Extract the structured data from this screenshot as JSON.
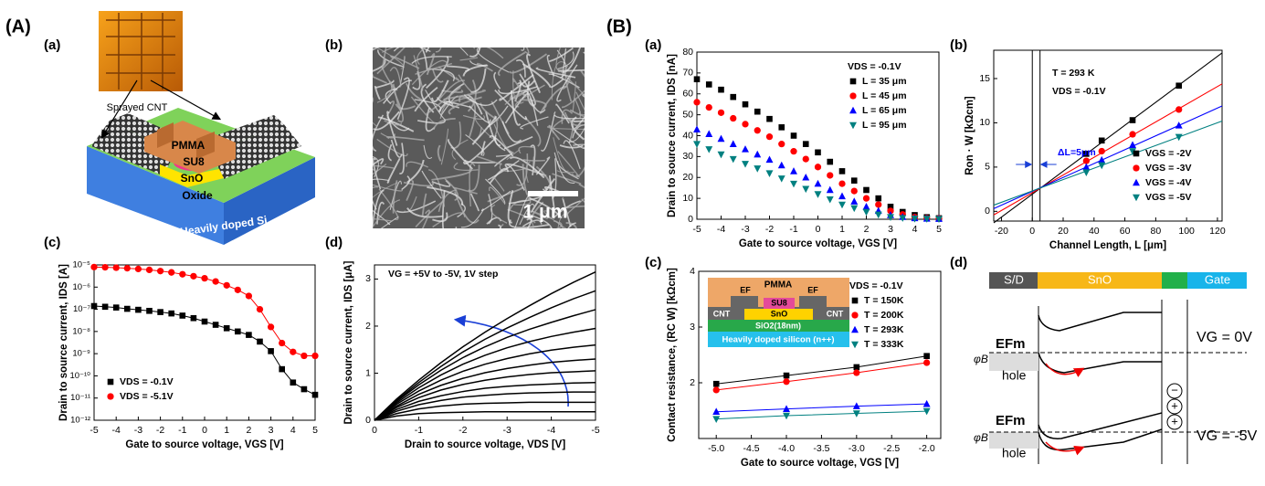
{
  "panel_labels": {
    "A": "(A)",
    "Aa": "(a)",
    "Ab": "(b)",
    "Ac": "(c)",
    "Ad": "(d)",
    "B": "(B)",
    "Ba": "(a)",
    "Bb": "(b)",
    "Bc": "(c)",
    "Bd": "(d)"
  },
  "device": {
    "cnt": "Sprayed CNT",
    "pmma": "PMMA",
    "su8": "SU8",
    "sno": "SnO",
    "oxide": "Oxide",
    "substrate": "Heavily doped Si"
  },
  "sem": {
    "scale_bar": "1 μm"
  },
  "band": {
    "regions": [
      "S/D",
      "SnO",
      "Gate"
    ],
    "efm": "EFm",
    "phi": "φB",
    "hole": "hole",
    "vg0": "VG = 0V",
    "vg5": "VG = -5V",
    "charges": [
      "−",
      "+",
      "+"
    ]
  },
  "chart_data": [
    {
      "type": "line",
      "log_y": true,
      "lines": true,
      "xlabel": "Gate to source voltage, VGS [V]",
      "ylabel": "Drain to source current, IDS [A]",
      "x": [
        -5,
        -4.5,
        -4,
        -3.5,
        -3,
        -2.5,
        -2,
        -1.5,
        -1,
        -0.5,
        0,
        0.5,
        1,
        1.5,
        2,
        2.5,
        3,
        3.5,
        4,
        4.5,
        5
      ],
      "xlim": [
        -5,
        5
      ],
      "xticks": [
        -5,
        -4,
        -3,
        -2,
        -1,
        0,
        1,
        2,
        3,
        4,
        5
      ],
      "ylim": [
        1e-12,
        1e-05
      ],
      "yticks": [
        {
          "value": 1e-12,
          "label": "10⁻¹²"
        },
        {
          "value": 1e-11,
          "label": "10⁻¹¹"
        },
        {
          "value": 1e-10,
          "label": "10⁻¹⁰"
        },
        {
          "value": 1e-09,
          "label": "10⁻⁹"
        },
        {
          "value": 1e-08,
          "label": "10⁻⁸"
        },
        {
          "value": 1e-07,
          "label": "10⁻⁷"
        },
        {
          "value": 1e-06,
          "label": "10⁻⁶"
        },
        {
          "value": 1e-05,
          "label": "10⁻⁵"
        }
      ],
      "legend": "lower left",
      "series": [
        {
          "name": "VDS = -0.1V",
          "color": "#000000",
          "marker": "square",
          "values": [
            1.4e-07,
            1.3e-07,
            1.2e-07,
            1.05e-07,
            9.5e-08,
            8.5e-08,
            7.5e-08,
            6.5e-08,
            5.2e-08,
            4e-08,
            2.8e-08,
            2e-08,
            1.4e-08,
            1e-08,
            7e-09,
            3.5e-09,
            1.3e-09,
            2e-10,
            5e-11,
            2.5e-11,
            1.4e-11
          ]
        },
        {
          "name": "VDS = -5.1V",
          "color": "#ff0000",
          "marker": "circle",
          "values": [
            8e-06,
            7.8e-06,
            7.5e-06,
            7.1e-06,
            6.6e-06,
            6e-06,
            5.3e-06,
            4.6e-06,
            3.8e-06,
            3.1e-06,
            2.5e-06,
            1.8e-06,
            1.2e-06,
            7.5e-07,
            4e-07,
            1e-07,
            1.6e-08,
            3e-09,
            1.2e-09,
            8e-10,
            8e-10
          ]
        }
      ]
    },
    {
      "type": "line",
      "lines": true,
      "xlabel": "Drain to source voltage, VDS [V]",
      "ylabel": "Drain to source current, IDS [μA]",
      "x": [
        0,
        -0.5,
        -1,
        -1.5,
        -2,
        -2.5,
        -3,
        -3.5,
        -4,
        -4.5,
        -5
      ],
      "xlim": [
        0,
        -5
      ],
      "xticks": [
        0,
        -1,
        -2,
        -3,
        -4,
        -5
      ],
      "ylim": [
        0,
        3.3
      ],
      "yticks": [
        0,
        1,
        2,
        3
      ],
      "annotations": [
        {
          "text": "VG = +5V to -5V, 1V step",
          "color": "#000000"
        }
      ],
      "series": [
        {
          "color": "#000000",
          "values": [
            0,
            0.45,
            0.85,
            1.22,
            1.56,
            1.87,
            2.16,
            2.43,
            2.69,
            2.93,
            3.15
          ]
        },
        {
          "color": "#000000",
          "values": [
            0,
            0.42,
            0.8,
            1.14,
            1.45,
            1.72,
            1.96,
            2.18,
            2.39,
            2.58,
            2.75
          ]
        },
        {
          "color": "#000000",
          "values": [
            0,
            0.4,
            0.75,
            1.06,
            1.33,
            1.56,
            1.76,
            1.93,
            2.08,
            2.22,
            2.35
          ]
        },
        {
          "color": "#000000",
          "values": [
            0,
            0.37,
            0.69,
            0.96,
            1.19,
            1.38,
            1.54,
            1.67,
            1.78,
            1.87,
            1.95
          ]
        },
        {
          "color": "#000000",
          "values": [
            0,
            0.34,
            0.62,
            0.85,
            1.04,
            1.19,
            1.31,
            1.41,
            1.49,
            1.55,
            1.6
          ]
        },
        {
          "color": "#000000",
          "values": [
            0,
            0.3,
            0.55,
            0.74,
            0.89,
            1.01,
            1.1,
            1.17,
            1.23,
            1.27,
            1.3
          ]
        },
        {
          "color": "#000000",
          "values": [
            0,
            0.27,
            0.48,
            0.64,
            0.76,
            0.85,
            0.92,
            0.97,
            1.01,
            1.03,
            1.05
          ]
        },
        {
          "color": "#000000",
          "values": [
            0,
            0.23,
            0.4,
            0.52,
            0.61,
            0.68,
            0.72,
            0.75,
            0.77,
            0.79,
            0.8
          ]
        },
        {
          "color": "#000000",
          "values": [
            0,
            0.19,
            0.33,
            0.42,
            0.49,
            0.53,
            0.56,
            0.58,
            0.59,
            0.6,
            0.6
          ]
        },
        {
          "color": "#000000",
          "values": [
            0,
            0.14,
            0.24,
            0.3,
            0.34,
            0.36,
            0.37,
            0.38,
            0.38,
            0.38,
            0.38
          ]
        },
        {
          "color": "#000000",
          "values": [
            0,
            0.09,
            0.14,
            0.16,
            0.17,
            0.18,
            0.18,
            0.18,
            0.18,
            0.18,
            0.18
          ]
        }
      ]
    },
    {
      "type": "line",
      "lines": false,
      "xlabel": "Gate to source voltage, VGS [V]",
      "ylabel": "Drain to source current, IDS [nA]",
      "x": [
        -5,
        -4.5,
        -4,
        -3.5,
        -3,
        -2.5,
        -2,
        -1.5,
        -1,
        -0.5,
        0,
        0.5,
        1,
        1.5,
        2,
        2.5,
        3,
        3.5,
        4,
        4.5,
        5
      ],
      "xlim": [
        -5,
        5
      ],
      "xticks": [
        -5,
        -4,
        -3,
        -2,
        -1,
        0,
        1,
        2,
        3,
        4,
        5
      ],
      "ylim": [
        0,
        80
      ],
      "yticks": [
        0,
        10,
        20,
        30,
        40,
        50,
        60,
        70,
        80
      ],
      "legend": "upper right",
      "legend_title": "VDS = -0.1V",
      "series": [
        {
          "name": "L = 35 μm",
          "color": "#000000",
          "marker": "square",
          "values": [
            67,
            64.5,
            62,
            58.5,
            55,
            51.5,
            48,
            44,
            40,
            36,
            32,
            27.5,
            23,
            18.5,
            14,
            10,
            6,
            3.5,
            2,
            1,
            0.5
          ]
        },
        {
          "name": "L = 45 μm",
          "color": "#ff0000",
          "marker": "circle",
          "values": [
            56,
            53.5,
            51,
            48.3,
            45.5,
            42.5,
            39.5,
            36,
            32.5,
            28.8,
            25,
            21,
            17,
            13.5,
            10,
            7,
            4,
            2.3,
            1,
            0.5,
            0.3
          ]
        },
        {
          "name": "L = 65 μm",
          "color": "#0000ff",
          "marker": "triangle-up",
          "values": [
            43,
            40.8,
            38.5,
            36,
            33.5,
            31,
            28.5,
            25.8,
            23,
            20,
            17,
            14,
            11,
            8.5,
            6,
            4,
            2,
            1.1,
            0.5,
            0.3,
            0.2
          ]
        },
        {
          "name": "L = 95 μm",
          "color": "#008080",
          "marker": "triangle-down",
          "values": [
            36,
            33.5,
            31,
            28.8,
            26.5,
            24.3,
            22,
            19.5,
            17,
            14.5,
            12,
            9.5,
            7,
            5.3,
            3.5,
            2.2,
            1,
            0.6,
            0.3,
            0.2,
            0.1
          ]
        }
      ]
    },
    {
      "type": "scatter",
      "lines": false,
      "xlabel": "Channel Length, L [μm]",
      "ylabel": "Ron · W [kΩcm]",
      "x": [
        35,
        45,
        65,
        95
      ],
      "xlim": [
        -25,
        123
      ],
      "xticks": [
        -20,
        0,
        20,
        40,
        60,
        80,
        100,
        120
      ],
      "ylim": [
        -1.1,
        18.2
      ],
      "yticks": [
        0,
        5,
        10,
        15
      ],
      "legend": "lower right",
      "fit_x": [
        -25,
        123
      ],
      "ref_lines": [
        0,
        5
      ],
      "annotations": [
        {
          "text": "T = 293 K",
          "color": "#000000"
        },
        {
          "text": "VDS = -0.1V",
          "color": "#000000"
        },
        {
          "text": "ΔL=5μm",
          "color": "#0000ff"
        }
      ],
      "series": [
        {
          "name": "VGS = -2V",
          "color": "#000000",
          "marker": "square",
          "values": [
            6.5,
            8,
            10.3,
            14.2
          ],
          "fit": [
            -1.3,
            17.9
          ]
        },
        {
          "name": "VGS = -3V",
          "color": "#ff0000",
          "marker": "circle",
          "values": [
            5.7,
            6.8,
            8.7,
            11.5
          ],
          "fit": [
            -0.4,
            14.4
          ]
        },
        {
          "name": "VGS = -4V",
          "color": "#0000ff",
          "marker": "triangle-up",
          "values": [
            5,
            5.8,
            7.5,
            9.7
          ],
          "fit": [
            0.3,
            11.9
          ]
        },
        {
          "name": "VGS = -5V",
          "color": "#008080",
          "marker": "triangle-down",
          "values": [
            4.4,
            5.2,
            6.8,
            8.4
          ],
          "fit": [
            0.7,
            10.2
          ]
        }
      ]
    },
    {
      "type": "line",
      "lines": true,
      "xlabel": "Gate to source voltage, VGS [V]",
      "ylabel": "Contact resistance, (RC W) [kΩcm]",
      "x": [
        -5,
        -4,
        -3,
        -2
      ],
      "xlim": [
        -5.25,
        -1.8
      ],
      "xticks": [
        {
          "value": -5,
          "label": "-5.0"
        },
        {
          "value": -4.5,
          "label": "-4.5"
        },
        {
          "value": -4,
          "label": "-4.0"
        },
        {
          "value": -3.5,
          "label": "-3.5"
        },
        {
          "value": -3,
          "label": "-3.0"
        },
        {
          "value": -2.5,
          "label": "-2.5"
        },
        {
          "value": -2,
          "label": "-2.0"
        }
      ],
      "ylim": [
        1,
        4
      ],
      "yticks": [
        2,
        3,
        4
      ],
      "legend": "upper right",
      "legend_title": "VDS = -0.1V",
      "inset": {
        "pmma": "PMMA",
        "ef": "EF",
        "su8": "SU8",
        "sno": "SnO",
        "cnt": "CNT",
        "oxide": "SiO2(18nm)",
        "substrate": "Heavily doped silicon (n++)"
      },
      "series": [
        {
          "name": "T = 150K",
          "color": "#000000",
          "marker": "square",
          "values": [
            1.98,
            2.13,
            2.28,
            2.48
          ]
        },
        {
          "name": "T = 200K",
          "color": "#ff0000",
          "marker": "circle",
          "values": [
            1.87,
            2.02,
            2.18,
            2.36
          ]
        },
        {
          "name": "T = 293K",
          "color": "#0000ff",
          "marker": "triangle-up",
          "values": [
            1.48,
            1.53,
            1.58,
            1.62
          ]
        },
        {
          "name": "T = 333K",
          "color": "#008080",
          "marker": "triangle-down",
          "values": [
            1.35,
            1.41,
            1.45,
            1.49
          ]
        }
      ]
    }
  ]
}
